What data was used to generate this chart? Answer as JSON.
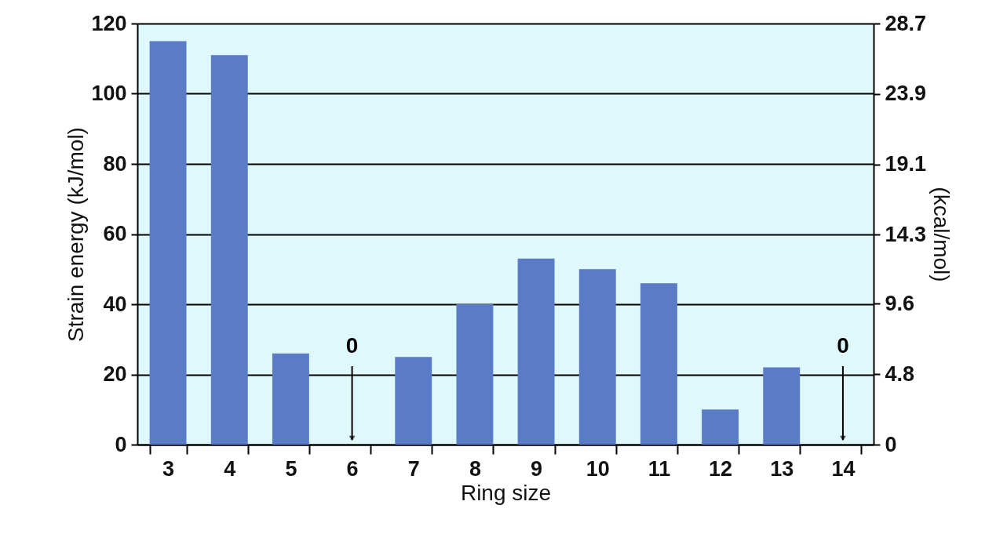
{
  "chart_data": {
    "type": "bar",
    "xlabel": "Ring size",
    "ylabel": "Strain energy (kJ/mol)",
    "y2label": "(kcal/mol)",
    "categories": [
      "3",
      "4",
      "5",
      "6",
      "7",
      "8",
      "9",
      "10",
      "11",
      "12",
      "13",
      "14"
    ],
    "values": [
      115,
      111,
      26,
      0,
      25,
      40,
      53,
      50,
      46,
      10,
      22,
      0
    ],
    "color": "#5a7bc6",
    "ylim": [
      0,
      120
    ],
    "yticks": [
      0,
      20,
      40,
      60,
      80,
      100,
      120
    ],
    "y2lim": [
      0,
      28.7
    ],
    "y2ticks": [
      0,
      4.8,
      9.6,
      14.3,
      19.1,
      23.9,
      28.7
    ],
    "grid": "y",
    "annotations": [
      {
        "text": "0",
        "x": "6",
        "y": 0
      },
      {
        "text": "0",
        "x": "14",
        "y": 0
      }
    ]
  }
}
